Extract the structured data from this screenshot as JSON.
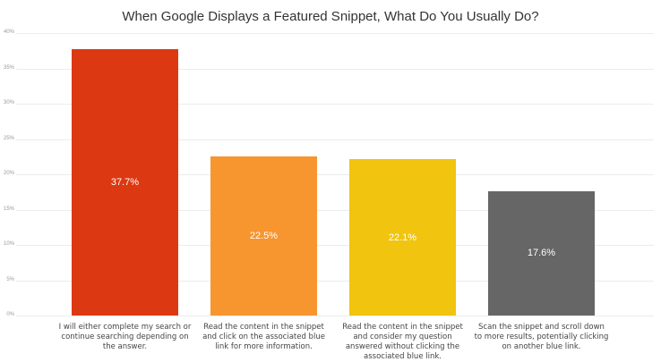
{
  "chart_data": {
    "type": "bar",
    "title": "When Google Displays a Featured Snippet, What Do You Usually Do?",
    "xlabel": "",
    "ylabel": "",
    "ylim": [
      0,
      40
    ],
    "yticks": [
      "0%",
      "5%",
      "10%",
      "15%",
      "20%",
      "25%",
      "30%",
      "35%",
      "40%"
    ],
    "grid": true,
    "legend": "none",
    "categories": [
      "I will either complete my search or continue searching depending on the answer.",
      "Read the content in the snippet and click on the associated blue link for more information.",
      "Read the content in the snippet and consider my question answered without clicking the associated blue link.",
      "Scan the snippet and scroll down to more results, potentially clicking on another blue link."
    ],
    "values": [
      37.7,
      22.5,
      22.1,
      17.6
    ],
    "value_labels": [
      "37.7%",
      "22.5%",
      "22.1%",
      "17.6%"
    ],
    "colors": [
      "#dc3912",
      "#f7952f",
      "#f1c40f",
      "#666666"
    ]
  }
}
